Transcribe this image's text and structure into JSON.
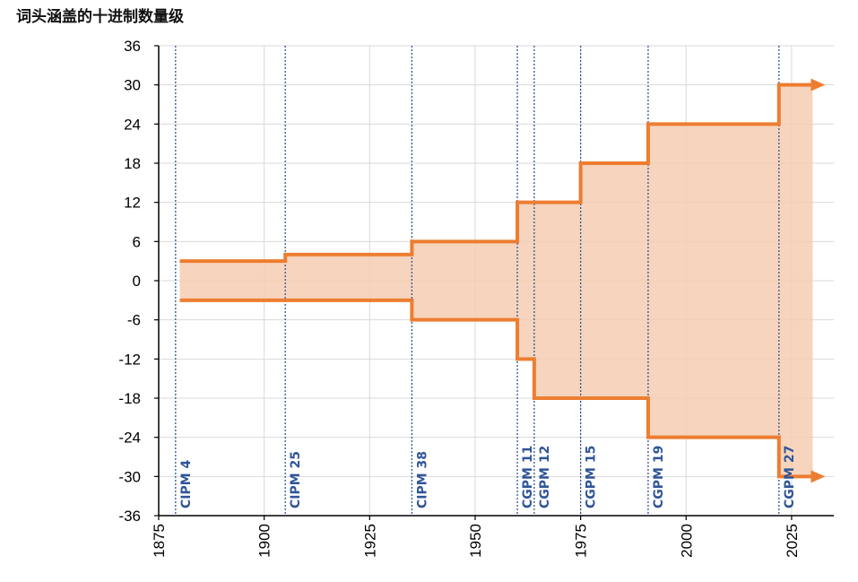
{
  "title": "词头涵盖的十进制数量级",
  "colors": {
    "line": "#ed7d31",
    "fill": "#f4ccb2",
    "event_line": "#2f5597",
    "grid": "#d9d9d9",
    "axis": "#000000"
  },
  "chart_data": {
    "type": "area",
    "title": "词头涵盖的十进制数量级",
    "xlim": [
      1875,
      2035
    ],
    "ylim": [
      -36,
      36
    ],
    "x_ticks": [
      1875,
      1900,
      1925,
      1950,
      1975,
      2000,
      2025
    ],
    "y_ticks": [
      36,
      30,
      24,
      18,
      12,
      6,
      0,
      -6,
      -12,
      -18,
      -24,
      -30,
      -36
    ],
    "grid": true,
    "series": [
      {
        "values": [
          {
            "x": 1880,
            "y": 3
          },
          {
            "x": 1905,
            "y": 4
          },
          {
            "x": 1935,
            "y": 6
          },
          {
            "x": 1960,
            "y": 12
          },
          {
            "x": 1975,
            "y": 18
          },
          {
            "x": 1991,
            "y": 24
          },
          {
            "x": 2022,
            "y": 30
          },
          {
            "x": 2030,
            "y": 30
          }
        ]
      },
      {
        "values": [
          {
            "x": 1880,
            "y": -3
          },
          {
            "x": 1935,
            "y": -6
          },
          {
            "x": 1960,
            "y": -12
          },
          {
            "x": 1964,
            "y": -18
          },
          {
            "x": 1991,
            "y": -24
          },
          {
            "x": 2022,
            "y": -30
          },
          {
            "x": 2030,
            "y": -30
          }
        ]
      }
    ],
    "events": [
      {
        "label": "CIPM 4",
        "x": 1879
      },
      {
        "label": "CIPM 25",
        "x": 1905
      },
      {
        "label": "CIPM 38",
        "x": 1935
      },
      {
        "label": "CGPM 11",
        "x": 1960
      },
      {
        "label": "CGPM 12",
        "x": 1964
      },
      {
        "label": "CGPM 15",
        "x": 1975
      },
      {
        "label": "CGPM 19",
        "x": 1991
      },
      {
        "label": "CGPM 27",
        "x": 2022
      }
    ]
  }
}
